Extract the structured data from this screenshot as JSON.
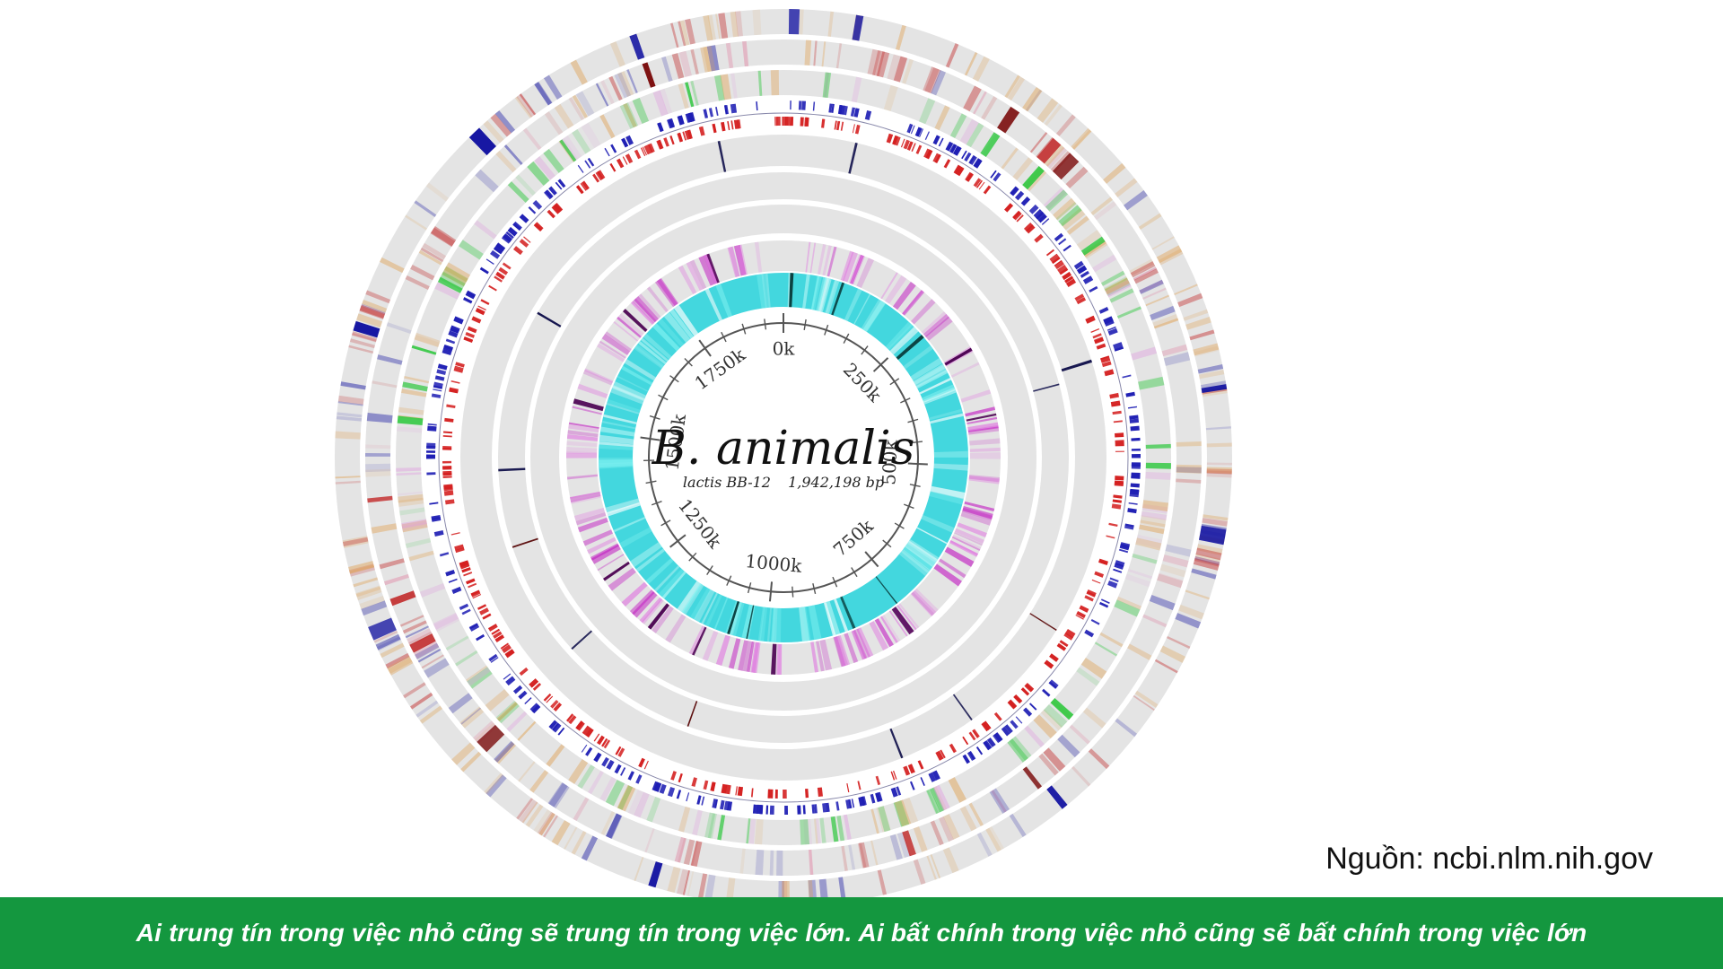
{
  "diagram": {
    "title": "B. animalis",
    "subtitle_strain": "lactis BB-12",
    "subtitle_size": "1,942,198 bp",
    "scale_labels": [
      "0k",
      "250k",
      "500k",
      "750k",
      "1000k",
      "1250k",
      "1500k",
      "1750k"
    ],
    "genome_length": 1942198,
    "colors": {
      "ring_background": "#e4e4e4",
      "forward_genes": "#1f1fb4",
      "reverse_genes": "#d42020",
      "gc_content": "#22d0d8",
      "gc_skew": "#c010c0",
      "outer_green": "#30c840",
      "outer_red": "#c02020",
      "outer_blue": "#1010a0",
      "outer_orange": "#e0a050",
      "axis": "#555555"
    }
  },
  "source": {
    "text": "Nguồn: ncbi.nlm.nih.gov"
  },
  "footer": {
    "quote": "Ai trung tín trong việc nhỏ cũng sẽ trung tín trong việc lớn. Ai bất chính trong việc nhỏ cũng sẽ bất chính trong việc lớn",
    "background": "#14973f"
  }
}
